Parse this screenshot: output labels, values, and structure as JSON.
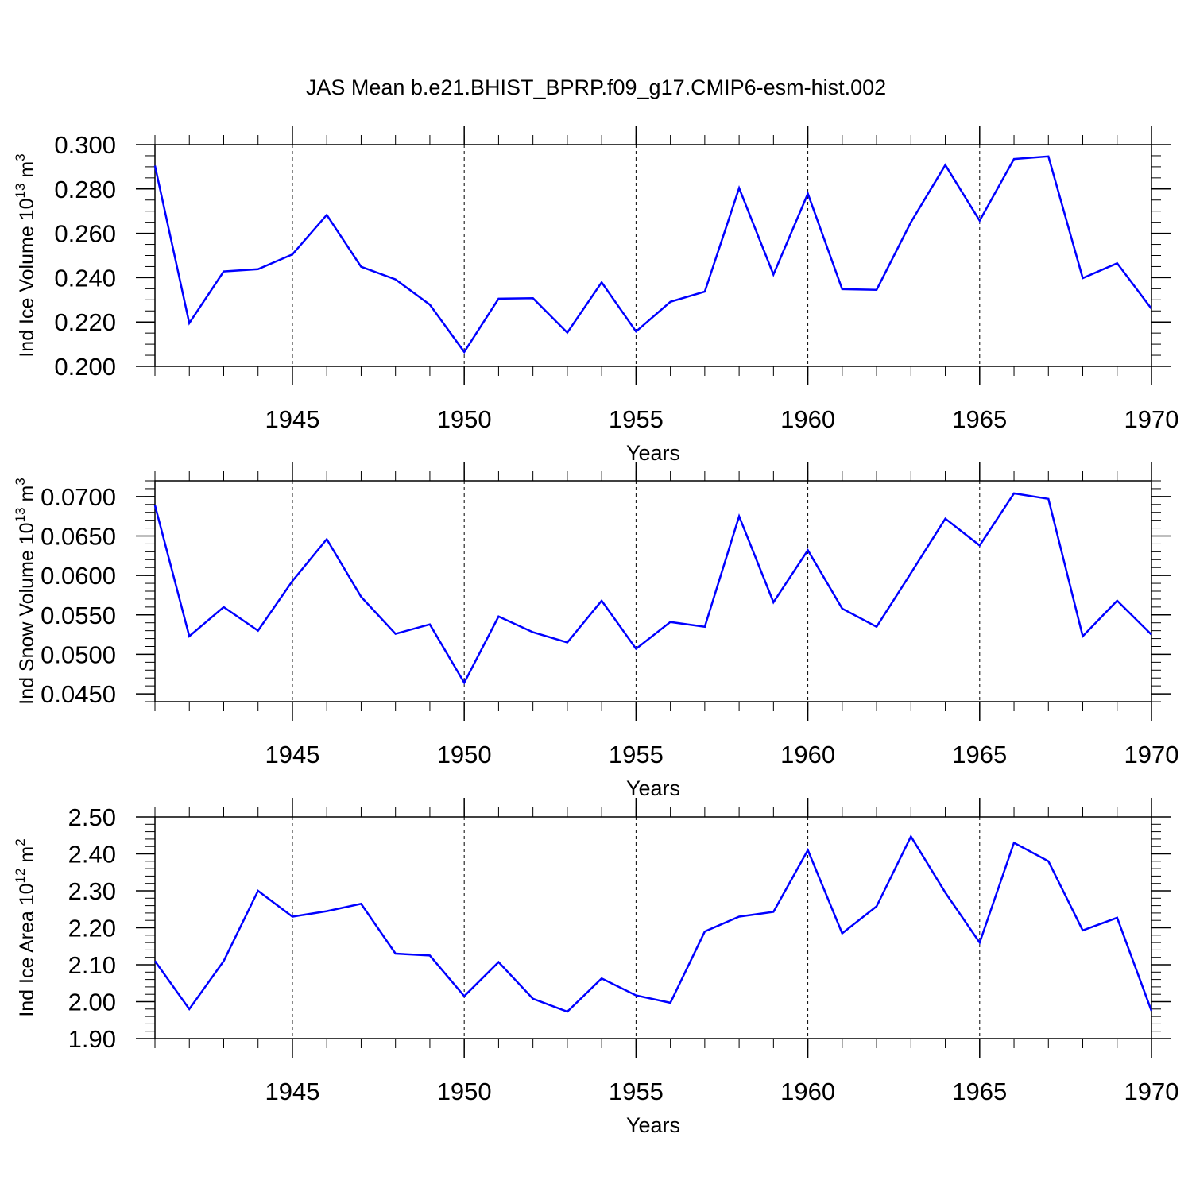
{
  "title": "JAS Mean b.e21.BHIST_BPRP.f09_g17.CMIP6-esm-hist.002",
  "line_color": "#0000ff",
  "chart_data": [
    {
      "type": "line",
      "ylabel_main": "Ind Ice Volume 10",
      "ylabel_exp": "13",
      "ylabel_unit": " m",
      "ylabel_unit_exp": "3",
      "xlabel": "Years",
      "xlim": [
        1941,
        1970
      ],
      "ylim": [
        0.2,
        0.3
      ],
      "yticks": [
        0.2,
        0.22,
        0.24,
        0.26,
        0.28,
        0.3
      ],
      "ytick_labels": [
        "0.200",
        "0.220",
        "0.240",
        "0.260",
        "0.280",
        "0.300"
      ],
      "yminor_step": 0.005,
      "xticks": [
        1945,
        1950,
        1955,
        1960,
        1965,
        1970
      ],
      "xtick_labels": [
        "1945",
        "1950",
        "1955",
        "1960",
        "1965",
        "1970"
      ],
      "x": [
        1941,
        1942,
        1943,
        1944,
        1945,
        1946,
        1947,
        1948,
        1949,
        1950,
        1951,
        1952,
        1953,
        1954,
        1955,
        1956,
        1957,
        1958,
        1959,
        1960,
        1961,
        1962,
        1963,
        1964,
        1965,
        1966,
        1967,
        1968,
        1969,
        1970
      ],
      "values": [
        0.2905,
        0.2195,
        0.2428,
        0.2438,
        0.2505,
        0.2683,
        0.2449,
        0.2392,
        0.2278,
        0.2065,
        0.2305,
        0.2307,
        0.2152,
        0.2379,
        0.2157,
        0.2291,
        0.2337,
        0.2804,
        0.2414,
        0.2779,
        0.2348,
        0.2345,
        0.265,
        0.2908,
        0.2657,
        0.2935,
        0.2947,
        0.2398,
        0.2465,
        0.226
      ]
    },
    {
      "type": "line",
      "ylabel_main": "Ind Snow Volume 10",
      "ylabel_exp": "13",
      "ylabel_unit": " m",
      "ylabel_unit_exp": "3",
      "xlabel": "Years",
      "xlim": [
        1941,
        1970
      ],
      "ylim": [
        0.044,
        0.072
      ],
      "yticks": [
        0.045,
        0.05,
        0.055,
        0.06,
        0.065,
        0.07
      ],
      "ytick_labels": [
        "0.0450",
        "0.0500",
        "0.0550",
        "0.0600",
        "0.0650",
        "0.0700"
      ],
      "yminor_step": 0.001,
      "xticks": [
        1945,
        1950,
        1955,
        1960,
        1965,
        1970
      ],
      "xtick_labels": [
        "1945",
        "1950",
        "1955",
        "1960",
        "1965",
        "1970"
      ],
      "x": [
        1941,
        1942,
        1943,
        1944,
        1945,
        1946,
        1947,
        1948,
        1949,
        1950,
        1951,
        1952,
        1953,
        1954,
        1955,
        1956,
        1957,
        1958,
        1959,
        1960,
        1961,
        1962,
        1963,
        1964,
        1965,
        1966,
        1967,
        1968,
        1969,
        1970
      ],
      "values": [
        0.0689,
        0.0523,
        0.056,
        0.053,
        0.0593,
        0.0646,
        0.0573,
        0.0526,
        0.0538,
        0.0464,
        0.0548,
        0.0528,
        0.0515,
        0.0568,
        0.0507,
        0.0541,
        0.0535,
        0.0675,
        0.0566,
        0.0632,
        0.0558,
        0.0535,
        0.0603,
        0.0672,
        0.0638,
        0.0704,
        0.0697,
        0.0523,
        0.0568,
        0.0525
      ]
    },
    {
      "type": "line",
      "ylabel_main": "Ind Ice Area 10",
      "ylabel_exp": "12",
      "ylabel_unit": " m",
      "ylabel_unit_exp": "2",
      "xlabel": "Years",
      "xlim": [
        1941,
        1970
      ],
      "ylim": [
        1.9,
        2.5
      ],
      "yticks": [
        1.9,
        2.0,
        2.1,
        2.2,
        2.3,
        2.4,
        2.5
      ],
      "ytick_labels": [
        "1.90",
        "2.00",
        "2.10",
        "2.20",
        "2.30",
        "2.40",
        "2.50"
      ],
      "yminor_step": 0.02,
      "xticks": [
        1945,
        1950,
        1955,
        1960,
        1965,
        1970
      ],
      "xtick_labels": [
        "1945",
        "1950",
        "1955",
        "1960",
        "1965",
        "1970"
      ],
      "x": [
        1941,
        1942,
        1943,
        1944,
        1945,
        1946,
        1947,
        1948,
        1949,
        1950,
        1951,
        1952,
        1953,
        1954,
        1955,
        1956,
        1957,
        1958,
        1959,
        1960,
        1961,
        1962,
        1963,
        1964,
        1965,
        1966,
        1967,
        1968,
        1969,
        1970
      ],
      "values": [
        2.11,
        1.98,
        2.11,
        2.3,
        2.23,
        2.245,
        2.265,
        2.13,
        2.125,
        2.015,
        2.107,
        2.008,
        1.973,
        2.063,
        2.017,
        1.997,
        2.19,
        2.23,
        2.243,
        2.41,
        2.185,
        2.258,
        2.447,
        2.295,
        2.16,
        2.43,
        2.38,
        2.193,
        2.227,
        1.975
      ]
    }
  ]
}
